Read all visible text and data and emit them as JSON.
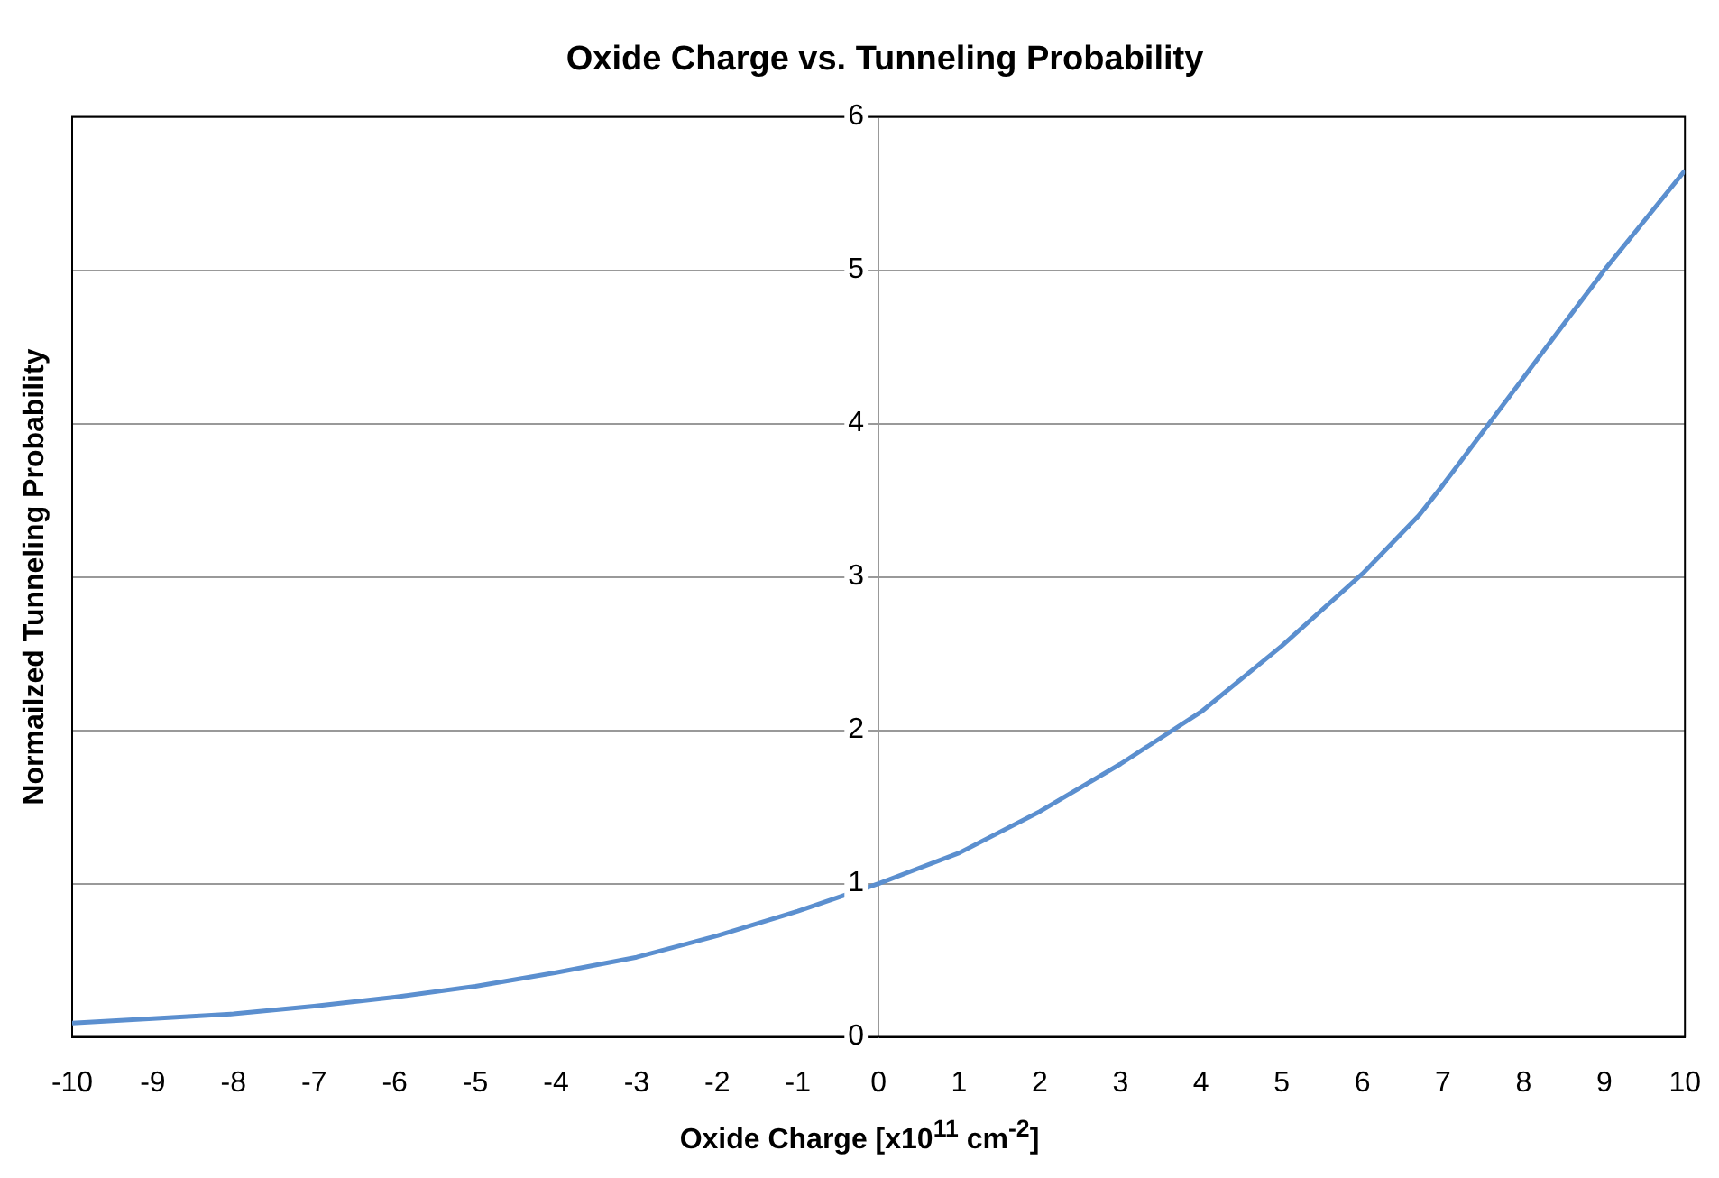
{
  "chart_data": {
    "type": "line",
    "title": "Oxide Charge vs. Tunneling Probability",
    "xlabel": "Oxide Charge [x10$^{11}$ cm$^{-2}$]",
    "ylabel": "Normailzed Tunneling Probability",
    "x": [
      -10,
      -9,
      -8,
      -7,
      -6,
      -5,
      -4,
      -3,
      -2,
      -1,
      0,
      1,
      2,
      3,
      4,
      5,
      6,
      6.7,
      7,
      8,
      9,
      10
    ],
    "series": [
      {
        "color": "#5b8fcf",
        "values": [
          0.09,
          0.12,
          0.15,
          0.2,
          0.26,
          0.33,
          0.42,
          0.52,
          0.66,
          0.82,
          1.0,
          1.2,
          1.47,
          1.78,
          2.12,
          2.55,
          3.02,
          3.4,
          3.6,
          4.3,
          5.0,
          5.65
        ]
      }
    ],
    "xlim": [
      -10,
      10
    ],
    "xticks": [
      -10,
      -9,
      -8,
      -7,
      -6,
      -5,
      -4,
      -3,
      -2,
      -1,
      0,
      1,
      2,
      3,
      4,
      5,
      6,
      7,
      8,
      9,
      10
    ],
    "ylim": [
      0,
      6
    ],
    "yticks": [
      0,
      1,
      2,
      3,
      4,
      5,
      6
    ],
    "grid": "y",
    "legend": false,
    "marker": "none",
    "line_style": "solid"
  }
}
